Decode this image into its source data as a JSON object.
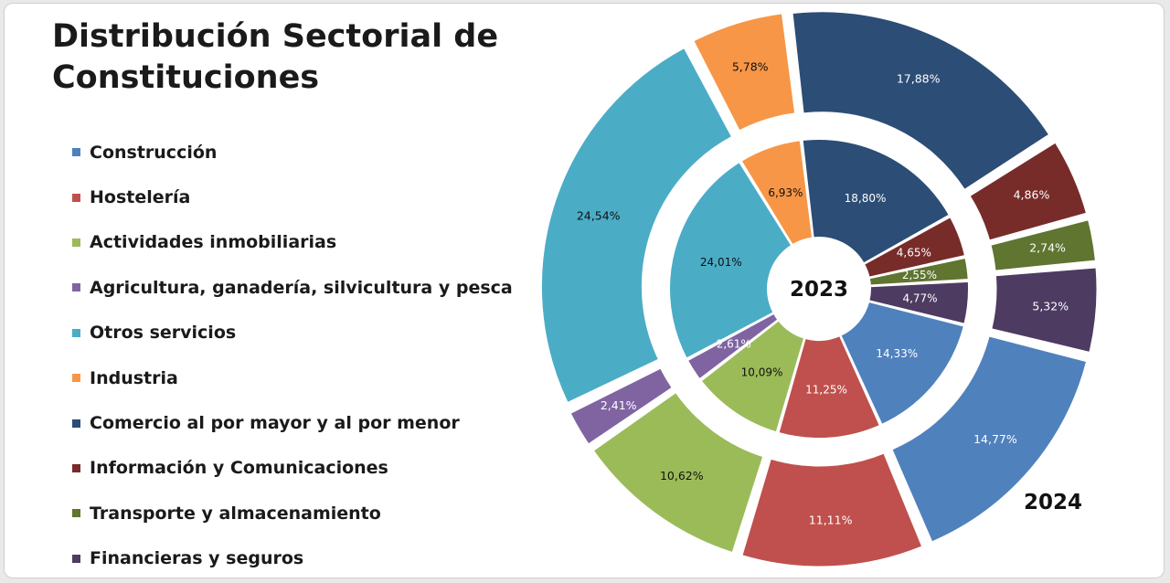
{
  "title": "Distribución Sectorial de Constituciones",
  "chart_data": {
    "type": "pie",
    "style": "doughnut",
    "title": "Distribución Sectorial de Constituciones",
    "legend_position": "left",
    "categories": [
      {
        "name": "Construcción",
        "color": "#4f81bd"
      },
      {
        "name": "Hostelería",
        "color": "#c0504d"
      },
      {
        "name": "Actividades inmobiliarias",
        "color": "#9bbb59"
      },
      {
        "name": "Agricultura, ganadería, silvicultura y pesca",
        "color": "#8064a2"
      },
      {
        "name": "Otros servicios",
        "color": "#4bacc6"
      },
      {
        "name": "Industria",
        "color": "#f79646"
      },
      {
        "name": "Comercio al por mayor y al por menor",
        "color": "#2c4d75"
      },
      {
        "name": "Información y Comunicaciones",
        "color": "#772c2a"
      },
      {
        "name": "Transporte y almacenamiento",
        "color": "#5f7530"
      },
      {
        "name": "Financieras y seguros",
        "color": "#4d3b62"
      }
    ],
    "series": [
      {
        "name": "2023",
        "ring": "inner",
        "values": [
          14.33,
          11.25,
          10.09,
          2.61,
          24.01,
          6.93,
          18.8,
          4.65,
          2.55,
          4.77
        ],
        "labels": [
          "14,33%",
          "11,25%",
          "10,09%",
          "2,61%",
          "24,01%",
          "6,93%",
          "18,80%",
          "4,65%",
          "2,55%",
          "4,77%"
        ]
      },
      {
        "name": "2024",
        "ring": "outer",
        "values": [
          14.77,
          11.11,
          10.62,
          2.41,
          24.54,
          5.78,
          17.88,
          4.86,
          2.74,
          5.32
        ],
        "labels": [
          "14,77%",
          "11,11%",
          "10,62%",
          "2,41%",
          "24,54%",
          "5,78%",
          "17,88%",
          "4,86%",
          "2,74%",
          "5,32%"
        ]
      }
    ],
    "annotations": [
      "2023",
      "2024"
    ]
  }
}
